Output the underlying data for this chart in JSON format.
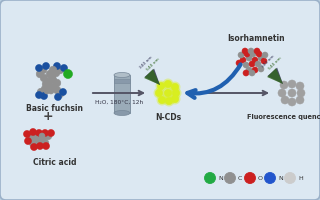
{
  "background_color": "#b8cfe0",
  "panel_color": "#dce8f2",
  "panel_edge_color": "#9ab0c8",
  "fig_width": 3.2,
  "fig_height": 2.0,
  "dpi": 100,
  "text_basic_fuchsin": "Basic fuchsin",
  "text_plus": "+",
  "text_citric_acid": "Citric acid",
  "text_reaction": "H₂O, 180°C, 12h",
  "text_ncd": "N-CDs",
  "text_isorhamnetin": "Isorhamnetin",
  "text_fluorescence": "Fluorescence quenching",
  "arrow_color": "#2060b0",
  "ncd_color": "#d8ee20",
  "grey_dot_color": "#a0a0a0",
  "molecule_grey": "#909090",
  "molecule_blue": "#1a50a0",
  "molecule_red": "#cc2020",
  "molecule_green": "#22aa22",
  "laser_dark": "#333355",
  "laser_green": "#336622",
  "laser_body": "#445533",
  "reactor_body": "#a0a8b0",
  "reactor_top": "#888fa0",
  "colors_legend": [
    "#22aa44",
    "#909090",
    "#cc2020",
    "#2255cc",
    "#cccccc"
  ],
  "labels_legend": [
    "N",
    "C",
    "O",
    "N",
    "H"
  ]
}
